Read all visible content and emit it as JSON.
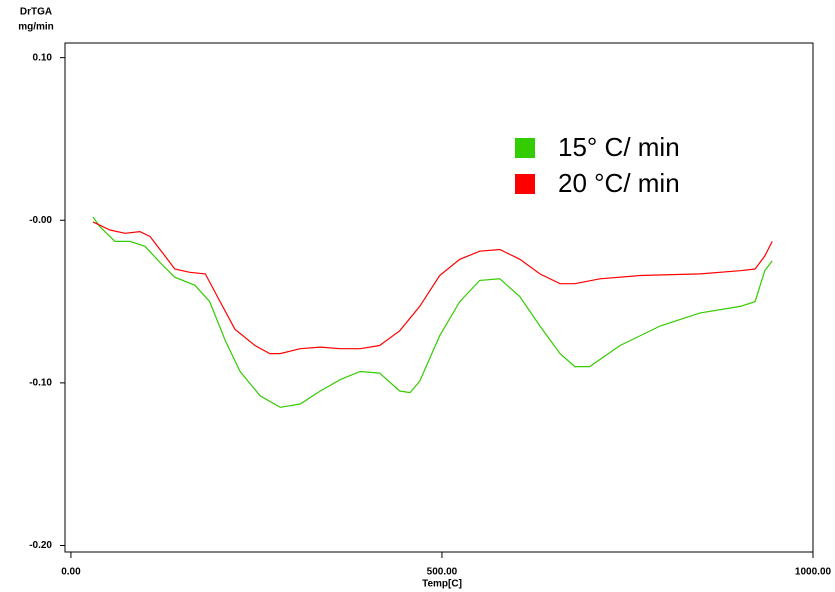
{
  "chart_data": {
    "type": "line",
    "y_label_lines": [
      "DrTGA",
      "mg/min"
    ],
    "x_label": "Temp[C]",
    "xlim": [
      -8,
      1000
    ],
    "xticks": [
      {
        "value": 0,
        "label": "0.00"
      },
      {
        "value": 500,
        "label": "500.00"
      },
      {
        "value": 1000,
        "label": "1000.00"
      }
    ],
    "ylim": [
      -0.204,
      0.109
    ],
    "yticks": [
      {
        "value": 0.1,
        "label": "0.10"
      },
      {
        "value": 0,
        "label": "-0.00"
      },
      {
        "value": -0.1,
        "label": "-0.10"
      },
      {
        "value": -0.2,
        "label": "-0.20"
      }
    ],
    "legend": "upper right",
    "series": [
      {
        "name": "15° C/ min",
        "color": "#33cc00",
        "x": [
          29.7,
          39.2,
          59.4,
          79.6,
          99.8,
          120,
          140,
          167,
          187,
          208,
          228,
          255,
          282,
          309,
          336,
          363,
          390,
          416,
          443,
          457,
          470,
          497,
          524,
          551,
          578,
          605,
          632,
          659,
          679,
          699,
          740,
          794,
          848,
          902,
          922,
          935,
          945
        ],
        "values": [
          0.002,
          -0.004,
          -0.013,
          -0.013,
          -0.016,
          -0.026,
          -0.035,
          -0.04,
          -0.05,
          -0.074,
          -0.093,
          -0.108,
          -0.115,
          -0.113,
          -0.105,
          -0.098,
          -0.093,
          -0.094,
          -0.105,
          -0.106,
          -0.099,
          -0.071,
          -0.05,
          -0.037,
          -0.036,
          -0.047,
          -0.065,
          -0.082,
          -0.09,
          -0.09,
          -0.077,
          -0.065,
          -0.057,
          -0.053,
          -0.05,
          -0.031,
          -0.025
        ]
      },
      {
        "name": "20 °C/ min",
        "color": "#ff0000",
        "x": [
          29.7,
          52.6,
          72.9,
          93.1,
          106.6,
          126.8,
          140,
          160,
          181,
          201,
          221,
          248,
          268,
          282,
          309,
          336,
          363,
          390,
          416,
          443,
          470,
          497,
          524,
          551,
          578,
          605,
          632,
          659,
          679,
          713,
          767,
          848,
          902,
          922,
          935,
          945
        ],
        "values": [
          -0.001,
          -0.006,
          -0.008,
          -0.007,
          -0.01,
          -0.022,
          -0.03,
          -0.032,
          -0.033,
          -0.05,
          -0.067,
          -0.077,
          -0.082,
          -0.082,
          -0.079,
          -0.078,
          -0.079,
          -0.079,
          -0.077,
          -0.068,
          -0.053,
          -0.034,
          -0.024,
          -0.019,
          -0.018,
          -0.024,
          -0.033,
          -0.039,
          -0.039,
          -0.036,
          -0.034,
          -0.033,
          -0.031,
          -0.03,
          -0.022,
          -0.013
        ]
      }
    ]
  }
}
